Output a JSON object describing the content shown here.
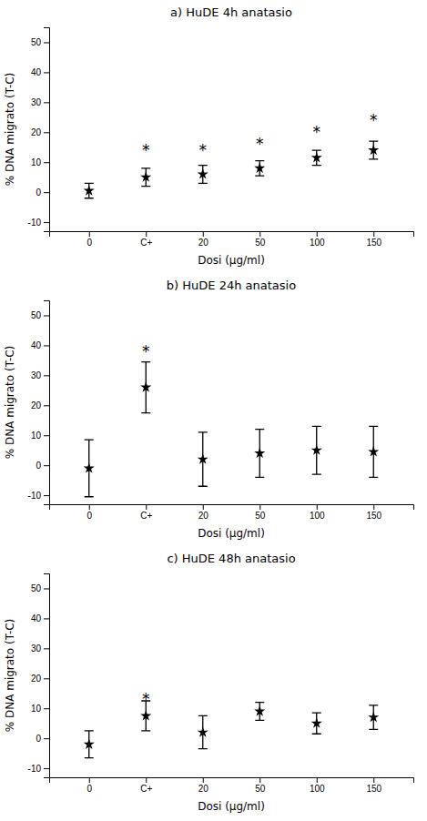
{
  "chart_data": [
    {
      "type": "errorbar",
      "title": "a)  HuDE 4h anatasio",
      "categories": [
        "0",
        "C+",
        "20",
        "50",
        "100",
        "150"
      ],
      "values": [
        0.5,
        5.0,
        6.0,
        8.0,
        11.5,
        14.0
      ],
      "errors": [
        2.5,
        3.0,
        3.0,
        2.5,
        2.5,
        3.0
      ],
      "color": "black",
      "marker": "star",
      "annotations": [
        {
          "text": "*",
          "x": "C+",
          "y": 15
        },
        {
          "text": "*",
          "x": "20",
          "y": 15
        },
        {
          "text": "*",
          "x": "50",
          "y": 17
        },
        {
          "text": "*",
          "x": "100",
          "y": 21
        },
        {
          "text": "*",
          "x": "150",
          "y": 25
        }
      ],
      "xlabel": "Dosi (μg/ml)",
      "ylabel": "% DNA migrato (T-C)",
      "ylim": [
        -13,
        55
      ],
      "yticks": [
        -10,
        0,
        10,
        20,
        30,
        40,
        50
      ],
      "grid": false
    },
    {
      "type": "errorbar",
      "title": "b)  HuDE 24h anatasio",
      "categories": [
        "0",
        "C+",
        "20",
        "50",
        "100",
        "150"
      ],
      "values": [
        -1.0,
        26.0,
        2.0,
        4.0,
        5.0,
        4.5
      ],
      "errors": [
        9.5,
        8.5,
        9.0,
        8.0,
        8.0,
        8.5
      ],
      "color": "black",
      "marker": "star",
      "annotations": [
        {
          "text": "*",
          "x": "C+",
          "y": 39
        }
      ],
      "xlabel": "Dosi (μg/ml)",
      "ylabel": "% DNA migrato (T-C)",
      "ylim": [
        -13,
        55
      ],
      "yticks": [
        -10,
        0,
        10,
        20,
        30,
        40,
        50
      ],
      "grid": false
    },
    {
      "type": "errorbar",
      "title": "c)  HuDE 48h anatasio",
      "categories": [
        "0",
        "C+",
        "20",
        "50",
        "100",
        "150"
      ],
      "values": [
        -2.0,
        7.5,
        2.0,
        9.0,
        5.0,
        7.0
      ],
      "errors": [
        4.5,
        5.0,
        5.5,
        3.0,
        3.5,
        4.0
      ],
      "color": "black",
      "marker": "star",
      "annotations": [
        {
          "text": "*",
          "x": "C+",
          "y": 14
        }
      ],
      "xlabel": "Dosi (μg/ml)",
      "ylabel": "% DNA migrato (T-C)",
      "ylim": [
        -13,
        55
      ],
      "yticks": [
        -10,
        0,
        10,
        20,
        30,
        40,
        50
      ],
      "grid": false
    }
  ]
}
